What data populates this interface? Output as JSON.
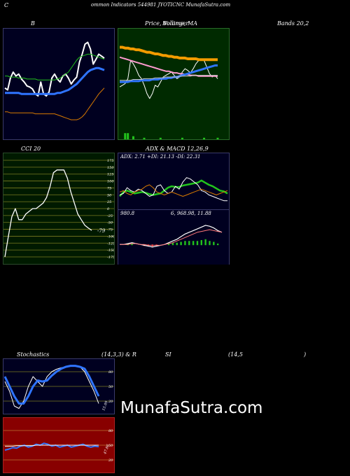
{
  "header": {
    "c_label": "C",
    "title": "ommon Indicators 544981 JYOTICNC MunafaSutra.com"
  },
  "labels": {
    "bollinger": "B",
    "price_vol": "Price, Volume, MA",
    "price_overlap": "Bollinger",
    "bands": "Bands 20,2",
    "cci": "CCI 20",
    "adx_macd": "ADX & MACD 12,26,9",
    "adx_values": "ADX: 2.71 +DI: 21.13 -DI: 22.31",
    "macd_values_a": "980.8",
    "macd_values_b": "6, 968.98, 11.88",
    "stoch": "Stochastics",
    "stoch_params": "(14,3,3) & R",
    "rsi_a": "SI",
    "rsi_b": "(14,5",
    "rsi_c": ")"
  },
  "watermark": "MunafaSutra.com",
  "colors": {
    "bollinger_bg": "#000020",
    "price_bg": "#002a00",
    "cci_bg": "#001a00",
    "adx_bg": "#000020",
    "stoch_bg": "#000020",
    "rsi_bg": "#880000",
    "blue": "#2f74ff",
    "green": "#22c41c",
    "orange": "#d97a00",
    "white": "#ffffff"
  },
  "chart_data": [
    {
      "type": "line",
      "name": "bollinger",
      "y_domain": [
        0,
        100
      ],
      "series": [
        {
          "name": "price",
          "color": "#ffffff",
          "values": [
            46,
            44,
            56,
            62,
            58,
            60,
            55,
            52,
            48,
            47,
            45,
            40,
            38,
            52,
            40,
            38,
            42,
            56,
            60,
            55,
            52,
            58,
            60,
            56,
            50,
            54,
            57,
            72,
            80,
            90,
            92,
            85,
            70,
            75,
            80,
            78,
            76
          ]
        },
        {
          "name": "upper",
          "color": "#22c41c",
          "values": [
            58,
            58,
            57,
            57,
            57,
            56,
            56,
            56,
            55,
            55,
            55,
            55,
            54,
            54,
            54,
            54,
            54,
            54,
            54,
            55,
            56,
            58,
            60,
            62,
            66,
            70,
            74,
            77,
            78,
            79,
            80,
            80,
            79,
            78,
            77,
            76,
            75
          ]
        },
        {
          "name": "middle",
          "color": "#2f74ff",
          "values": [
            41,
            41,
            41,
            41,
            41,
            41,
            40,
            40,
            40,
            40,
            40,
            40,
            40,
            40,
            40,
            40,
            40,
            40,
            40,
            41,
            41,
            42,
            43,
            44,
            46,
            48,
            50,
            53,
            56,
            59,
            62,
            64,
            65,
            66,
            66,
            65,
            64
          ]
        },
        {
          "name": "lower",
          "color": "#d97a00",
          "values": [
            22,
            22,
            21,
            21,
            21,
            21,
            21,
            21,
            21,
            21,
            21,
            20,
            20,
            20,
            20,
            20,
            20,
            20,
            20,
            19,
            18,
            17,
            16,
            15,
            14,
            14,
            14,
            15,
            17,
            20,
            24,
            28,
            32,
            36,
            40,
            43,
            46
          ]
        }
      ]
    },
    {
      "type": "line",
      "name": "price_volume_ma",
      "y_domain": [
        0,
        100
      ],
      "series": [
        {
          "name": "price",
          "color": "#ffffff",
          "values": [
            38,
            40,
            42,
            48,
            70,
            66,
            60,
            52,
            48,
            40,
            30,
            24,
            30,
            40,
            38,
            44,
            50,
            52,
            54,
            56,
            52,
            48,
            50,
            56,
            60,
            58,
            55,
            60,
            66,
            70,
            72,
            70,
            62,
            54,
            50,
            52,
            48
          ]
        },
        {
          "name": "ma_orange",
          "color": "#f39b00",
          "values": [
            86,
            86,
            85,
            85,
            84,
            84,
            83,
            83,
            82,
            81,
            80,
            80,
            79,
            78,
            78,
            77,
            76,
            76,
            75,
            75,
            74,
            74,
            73,
            73,
            73,
            72,
            72,
            72,
            72,
            71,
            71,
            71,
            71,
            71,
            71,
            71,
            71
          ]
        },
        {
          "name": "ma_pink",
          "color": "#ff9bd0",
          "values": [
            74,
            73,
            72,
            71,
            70,
            69,
            68,
            67,
            66,
            65,
            64,
            63,
            62,
            61,
            60,
            59,
            58,
            57,
            57,
            56,
            55,
            55,
            54,
            54,
            53,
            53,
            52,
            52,
            52,
            51,
            51,
            51,
            51,
            51,
            51,
            51,
            51
          ]
        },
        {
          "name": "ma_blue",
          "color": "#2f74ff",
          "values": [
            44,
            44,
            44,
            44,
            45,
            45,
            45,
            45,
            46,
            46,
            46,
            46,
            47,
            47,
            47,
            48,
            48,
            48,
            49,
            49,
            50,
            50,
            51,
            52,
            53,
            54,
            55,
            56,
            57,
            58,
            59,
            60,
            61,
            62,
            63,
            64,
            64
          ]
        },
        {
          "name": "ma_white2",
          "color": "#cccccc",
          "values": [
            46,
            46,
            46,
            46,
            46,
            47,
            47,
            47,
            47,
            48,
            48,
            48,
            48,
            49,
            49,
            49,
            49,
            50,
            50,
            50,
            50,
            50,
            51,
            51,
            51,
            51,
            51,
            52,
            52,
            52,
            52,
            52,
            52,
            52,
            52,
            52,
            52
          ]
        }
      ],
      "volume": [
        0,
        0,
        4,
        4,
        0,
        2,
        0,
        0,
        0,
        1,
        0,
        0,
        0,
        0,
        0,
        1,
        0,
        0,
        0,
        0,
        0,
        0,
        0,
        1,
        0,
        0,
        0,
        0,
        0,
        0,
        0,
        1,
        0,
        0,
        0,
        0,
        1
      ]
    },
    {
      "type": "line",
      "name": "cci",
      "y_ticks": [
        "175",
        "150",
        "125",
        "100",
        "75",
        "50",
        "25",
        "0",
        "-25",
        "-50",
        "-75",
        "-100",
        "-125",
        "-150",
        "-175"
      ],
      "y_domain": [
        -175,
        175
      ],
      "last_label": "-79",
      "series": [
        {
          "name": "cci",
          "color": "#ffffff",
          "values": [
            -175,
            -100,
            -30,
            0,
            -40,
            -40,
            -20,
            -10,
            0,
            0,
            10,
            20,
            40,
            80,
            130,
            140,
            140,
            140,
            110,
            60,
            20,
            -20,
            -40,
            -60,
            -70,
            -79
          ]
        }
      ]
    },
    {
      "type": "line",
      "name": "adx",
      "y_domain": [
        0,
        60
      ],
      "series": [
        {
          "name": "adx",
          "color": "#22c41c",
          "values": [
            14,
            20,
            22,
            20,
            18,
            19,
            20,
            19,
            17,
            16,
            17,
            18,
            22,
            26,
            28,
            27,
            27,
            29,
            30,
            31,
            32,
            33,
            36,
            33,
            30,
            28,
            25,
            22,
            21,
            18
          ]
        },
        {
          "name": "plus_di",
          "color": "#ffffff",
          "values": [
            16,
            18,
            26,
            22,
            20,
            24,
            22,
            18,
            14,
            16,
            28,
            30,
            22,
            18,
            20,
            28,
            24,
            34,
            40,
            38,
            34,
            30,
            22,
            20,
            16,
            14,
            12,
            10,
            8,
            8
          ]
        },
        {
          "name": "minus_di",
          "color": "#d97a00",
          "values": [
            20,
            22,
            18,
            16,
            20,
            22,
            24,
            28,
            30,
            26,
            20,
            18,
            16,
            18,
            20,
            18,
            16,
            14,
            16,
            18,
            20,
            22,
            24,
            22,
            20,
            18,
            16,
            18,
            20,
            22
          ]
        }
      ]
    },
    {
      "type": "line",
      "name": "macd",
      "y_domain": [
        -20,
        30
      ],
      "series": [
        {
          "name": "macd",
          "color": "#ffffff",
          "values": [
            0,
            0,
            1,
            2,
            1,
            0,
            -1,
            -2,
            -3,
            -2,
            -1,
            0,
            2,
            4,
            6,
            9,
            12,
            14,
            16,
            18,
            20,
            22,
            21,
            19,
            16,
            14
          ]
        },
        {
          "name": "signal",
          "color": "#ff7777",
          "values": [
            0,
            0,
            0,
            1,
            1,
            0,
            0,
            -1,
            -1,
            -1,
            -1,
            0,
            1,
            2,
            4,
            6,
            8,
            10,
            12,
            14,
            15,
            16,
            17,
            16,
            15,
            14
          ]
        }
      ],
      "histogram": [
        0,
        0,
        1,
        1,
        0,
        0,
        -1,
        -1,
        -2,
        -1,
        0,
        0,
        1,
        2,
        2,
        3,
        4,
        4,
        4,
        4,
        5,
        6,
        4,
        3,
        1,
        0
      ]
    },
    {
      "type": "line",
      "name": "stochastics",
      "y_ticks": [
        "80",
        "50",
        "20"
      ],
      "y_domain": [
        0,
        100
      ],
      "last_label": "15.09",
      "series": [
        {
          "name": "k",
          "color": "#ffffff",
          "values": [
            60,
            40,
            10,
            5,
            20,
            50,
            70,
            60,
            50,
            70,
            80,
            85,
            88,
            90,
            92,
            92,
            90,
            80,
            60,
            40,
            15
          ]
        },
        {
          "name": "d",
          "color": "#2f74ff",
          "values": [
            70,
            50,
            30,
            15,
            15,
            30,
            50,
            62,
            60,
            62,
            72,
            80,
            86,
            90,
            92,
            92,
            90,
            86,
            70,
            50,
            30
          ]
        }
      ]
    },
    {
      "type": "line",
      "name": "rsi",
      "y_ticks": [
        "80",
        "50",
        "20"
      ],
      "y_domain": [
        0,
        100
      ],
      "last_label": "47.86",
      "series": [
        {
          "name": "rsi",
          "color": "#2f74ff",
          "values": [
            40,
            42,
            45,
            44,
            48,
            50,
            46,
            48,
            52,
            50,
            54,
            52,
            48,
            50,
            46,
            48,
            50,
            46,
            48,
            50,
            52,
            48,
            46,
            48,
            47
          ]
        },
        {
          "name": "rsi_ma",
          "color": "#ffffff",
          "values": [
            48,
            48,
            48,
            49,
            49,
            49,
            49,
            49,
            50,
            50,
            50,
            50,
            50,
            50,
            50,
            50,
            50,
            50,
            50,
            50,
            50,
            50,
            50,
            50,
            50
          ]
        }
      ]
    }
  ]
}
